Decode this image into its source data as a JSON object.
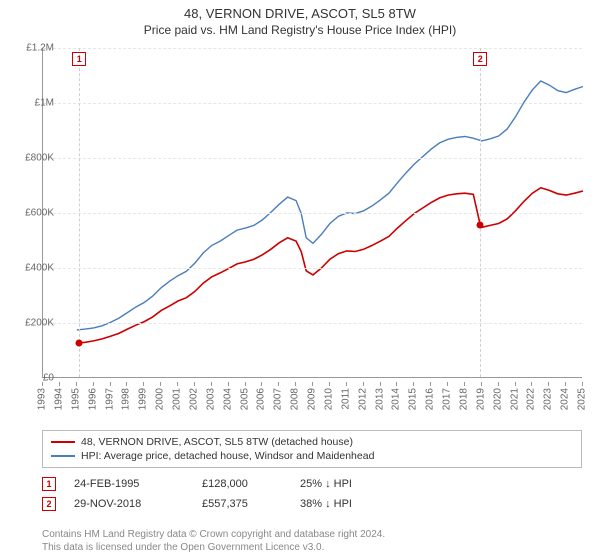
{
  "title_line1": "48, VERNON DRIVE, ASCOT, SL5 8TW",
  "title_line2": "Price paid vs. HM Land Registry's House Price Index (HPI)",
  "chart": {
    "type": "line",
    "background_color": "#ffffff",
    "grid_color": "#e6e6e6",
    "axis_color": "#999999",
    "x": {
      "min": 1993,
      "max": 2025,
      "tick_step": 1,
      "ticks": [
        1993,
        1994,
        1995,
        1996,
        1997,
        1998,
        1999,
        2000,
        2001,
        2002,
        2003,
        2004,
        2005,
        2006,
        2007,
        2008,
        2009,
        2010,
        2011,
        2012,
        2013,
        2014,
        2015,
        2016,
        2017,
        2018,
        2019,
        2020,
        2021,
        2022,
        2023,
        2024,
        2025
      ],
      "label_fontsize": 10,
      "label_rotation": -90
    },
    "y": {
      "min": 0,
      "max": 1200000,
      "tick_step": 200000,
      "ticks": [
        0,
        200000,
        400000,
        600000,
        800000,
        1000000,
        1200000
      ],
      "tick_labels": [
        "£0",
        "£200K",
        "£400K",
        "£600K",
        "£800K",
        "£1M",
        "£1.2M"
      ],
      "label_fontsize": 10
    },
    "series": [
      {
        "name": "48, VERNON DRIVE, ASCOT, SL5 8TW (detached house)",
        "color": "#cc0000",
        "line_width": 1.6,
        "points": [
          [
            1995.15,
            128000
          ],
          [
            1995.5,
            130000
          ],
          [
            1996,
            135000
          ],
          [
            1996.5,
            142000
          ],
          [
            1997,
            152000
          ],
          [
            1997.5,
            162000
          ],
          [
            1998,
            178000
          ],
          [
            1998.5,
            192000
          ],
          [
            1999,
            205000
          ],
          [
            1999.5,
            222000
          ],
          [
            2000,
            245000
          ],
          [
            2000.5,
            262000
          ],
          [
            2001,
            280000
          ],
          [
            2001.5,
            292000
          ],
          [
            2002,
            315000
          ],
          [
            2002.5,
            345000
          ],
          [
            2003,
            368000
          ],
          [
            2003.5,
            382000
          ],
          [
            2004,
            398000
          ],
          [
            2004.5,
            415000
          ],
          [
            2005,
            422000
          ],
          [
            2005.5,
            432000
          ],
          [
            2006,
            448000
          ],
          [
            2006.5,
            468000
          ],
          [
            2007,
            492000
          ],
          [
            2007.5,
            510000
          ],
          [
            2008,
            498000
          ],
          [
            2008.3,
            460000
          ],
          [
            2008.6,
            390000
          ],
          [
            2009,
            375000
          ],
          [
            2009.5,
            400000
          ],
          [
            2010,
            432000
          ],
          [
            2010.5,
            452000
          ],
          [
            2011,
            462000
          ],
          [
            2011.5,
            460000
          ],
          [
            2012,
            468000
          ],
          [
            2012.5,
            482000
          ],
          [
            2013,
            498000
          ],
          [
            2013.5,
            515000
          ],
          [
            2014,
            545000
          ],
          [
            2014.5,
            572000
          ],
          [
            2015,
            598000
          ],
          [
            2015.5,
            618000
          ],
          [
            2016,
            638000
          ],
          [
            2016.5,
            655000
          ],
          [
            2017,
            665000
          ],
          [
            2017.5,
            670000
          ],
          [
            2018,
            672000
          ],
          [
            2018.5,
            668000
          ],
          [
            2018.91,
            557375
          ],
          [
            2019,
            548000
          ],
          [
            2019.5,
            555000
          ],
          [
            2020,
            562000
          ],
          [
            2020.5,
            578000
          ],
          [
            2021,
            608000
          ],
          [
            2021.5,
            642000
          ],
          [
            2022,
            672000
          ],
          [
            2022.5,
            692000
          ],
          [
            2023,
            682000
          ],
          [
            2023.5,
            670000
          ],
          [
            2024,
            665000
          ],
          [
            2024.5,
            672000
          ],
          [
            2025,
            680000
          ]
        ]
      },
      {
        "name": "HPI: Average price, detached house, Windsor and Maidenhead",
        "color": "#4a7ebb",
        "line_width": 1.4,
        "points": [
          [
            1995,
            175000
          ],
          [
            1995.5,
            178000
          ],
          [
            1996,
            182000
          ],
          [
            1996.5,
            190000
          ],
          [
            1997,
            202000
          ],
          [
            1997.5,
            218000
          ],
          [
            1998,
            238000
          ],
          [
            1998.5,
            258000
          ],
          [
            1999,
            275000
          ],
          [
            1999.5,
            298000
          ],
          [
            2000,
            328000
          ],
          [
            2000.5,
            352000
          ],
          [
            2001,
            372000
          ],
          [
            2001.5,
            388000
          ],
          [
            2002,
            418000
          ],
          [
            2002.5,
            455000
          ],
          [
            2003,
            482000
          ],
          [
            2003.5,
            498000
          ],
          [
            2004,
            518000
          ],
          [
            2004.5,
            538000
          ],
          [
            2005,
            545000
          ],
          [
            2005.5,
            555000
          ],
          [
            2006,
            575000
          ],
          [
            2006.5,
            602000
          ],
          [
            2007,
            632000
          ],
          [
            2007.5,
            658000
          ],
          [
            2008,
            645000
          ],
          [
            2008.3,
            598000
          ],
          [
            2008.6,
            510000
          ],
          [
            2009,
            490000
          ],
          [
            2009.5,
            522000
          ],
          [
            2010,
            562000
          ],
          [
            2010.5,
            588000
          ],
          [
            2011,
            600000
          ],
          [
            2011.5,
            598000
          ],
          [
            2012,
            608000
          ],
          [
            2012.5,
            626000
          ],
          [
            2013,
            648000
          ],
          [
            2013.5,
            672000
          ],
          [
            2014,
            710000
          ],
          [
            2014.5,
            745000
          ],
          [
            2015,
            778000
          ],
          [
            2015.5,
            805000
          ],
          [
            2016,
            832000
          ],
          [
            2016.5,
            855000
          ],
          [
            2017,
            868000
          ],
          [
            2017.5,
            875000
          ],
          [
            2018,
            878000
          ],
          [
            2018.5,
            872000
          ],
          [
            2019,
            862000
          ],
          [
            2019.5,
            870000
          ],
          [
            2020,
            880000
          ],
          [
            2020.5,
            905000
          ],
          [
            2021,
            950000
          ],
          [
            2021.5,
            1002000
          ],
          [
            2022,
            1048000
          ],
          [
            2022.5,
            1080000
          ],
          [
            2023,
            1065000
          ],
          [
            2023.5,
            1045000
          ],
          [
            2024,
            1038000
          ],
          [
            2024.5,
            1050000
          ],
          [
            2025,
            1060000
          ]
        ]
      }
    ],
    "markers": [
      {
        "id": "1",
        "x": 1995.15,
        "y": 128000,
        "color": "#cc0000",
        "label_y_offset": -20
      },
      {
        "id": "2",
        "x": 2018.91,
        "y": 557375,
        "color": "#cc0000",
        "label_y_offset": -20
      }
    ]
  },
  "legend": {
    "border_color": "#bbbbbb",
    "fontsize": 10.5,
    "items": [
      {
        "color": "#cc0000",
        "label": "48, VERNON DRIVE, ASCOT, SL5 8TW (detached house)"
      },
      {
        "color": "#4a7ebb",
        "label": "HPI: Average price, detached house, Windsor and Maidenhead"
      }
    ]
  },
  "transactions": [
    {
      "id": "1",
      "date": "24-FEB-1995",
      "price": "£128,000",
      "pct": "25% ↓ HPI"
    },
    {
      "id": "2",
      "date": "29-NOV-2018",
      "price": "£557,375",
      "pct": "38% ↓ HPI"
    }
  ],
  "footer_line1": "Contains HM Land Registry data © Crown copyright and database right 2024.",
  "footer_line2": "This data is licensed under the Open Government Licence v3.0."
}
